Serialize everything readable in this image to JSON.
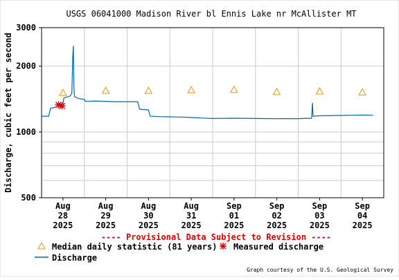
{
  "chart_data": {
    "type": "line",
    "title": "USGS 06041000 Madison River bl Ennis Lake nr McAllister MT",
    "ylabel": "Discharge, cubic feet per second",
    "xlabel": "",
    "y_scale": "log",
    "ylim": [
      500,
      3000
    ],
    "y_ticks": [
      {
        "value": 500,
        "label": "500"
      },
      {
        "value": 1000,
        "label": "1000"
      },
      {
        "value": 2000,
        "label": "2000"
      },
      {
        "value": 3000,
        "label": "3000"
      }
    ],
    "y_minor_ticks": [
      600,
      700,
      800,
      900
    ],
    "xlim": [
      "2025-08-28T00:00",
      "2025-09-05T00:00"
    ],
    "x_ticks": [
      {
        "date": "2025-08-28T12:00",
        "month": "Aug",
        "day": "28",
        "year": "2025"
      },
      {
        "date": "2025-08-29T12:00",
        "month": "Aug",
        "day": "29",
        "year": "2025"
      },
      {
        "date": "2025-08-30T12:00",
        "month": "Aug",
        "day": "30",
        "year": "2025"
      },
      {
        "date": "2025-08-31T12:00",
        "month": "Aug",
        "day": "31",
        "year": "2025"
      },
      {
        "date": "2025-09-01T12:00",
        "month": "Sep",
        "day": "01",
        "year": "2025"
      },
      {
        "date": "2025-09-02T12:00",
        "month": "Sep",
        "day": "02",
        "year": "2025"
      },
      {
        "date": "2025-09-03T12:00",
        "month": "Sep",
        "day": "03",
        "year": "2025"
      },
      {
        "date": "2025-09-04T12:00",
        "month": "Sep",
        "day": "04",
        "year": "2025"
      }
    ],
    "grid": true,
    "series": [
      {
        "name": "Discharge",
        "kind": "line",
        "color": "#0066aa",
        "points": [
          [
            "2025-08-28T00:00",
            1180
          ],
          [
            "2025-08-28T04:00",
            1180
          ],
          [
            "2025-08-28T05:00",
            1280
          ],
          [
            "2025-08-28T08:00",
            1300
          ],
          [
            "2025-08-28T12:00",
            1350
          ],
          [
            "2025-08-28T12:30",
            1430
          ],
          [
            "2025-08-28T16:00",
            1460
          ],
          [
            "2025-08-28T17:00",
            1500
          ],
          [
            "2025-08-28T17:30",
            2200
          ],
          [
            "2025-08-28T17:50",
            2480
          ],
          [
            "2025-08-28T18:10",
            1620
          ],
          [
            "2025-08-28T18:30",
            1450
          ],
          [
            "2025-08-28T21:00",
            1420
          ],
          [
            "2025-08-29T00:00",
            1410
          ],
          [
            "2025-08-29T00:30",
            1380
          ],
          [
            "2025-08-29T06:00",
            1385
          ],
          [
            "2025-08-29T12:00",
            1380
          ],
          [
            "2025-08-29T18:00",
            1375
          ],
          [
            "2025-08-30T00:00",
            1375
          ],
          [
            "2025-08-30T06:00",
            1375
          ],
          [
            "2025-08-30T07:00",
            1270
          ],
          [
            "2025-08-30T10:00",
            1265
          ],
          [
            "2025-08-30T12:00",
            1260
          ],
          [
            "2025-08-30T13:00",
            1180
          ],
          [
            "2025-08-30T18:00",
            1175
          ],
          [
            "2025-08-31T00:00",
            1172
          ],
          [
            "2025-08-31T06:00",
            1170
          ],
          [
            "2025-08-31T12:00",
            1165
          ],
          [
            "2025-08-31T18:00",
            1158
          ],
          [
            "2025-09-01T00:00",
            1152
          ],
          [
            "2025-09-01T12:00",
            1155
          ],
          [
            "2025-09-02T00:00",
            1152
          ],
          [
            "2025-09-02T12:00",
            1150
          ],
          [
            "2025-09-03T00:00",
            1150
          ],
          [
            "2025-09-03T07:30",
            1155
          ],
          [
            "2025-09-03T08:00",
            1360
          ],
          [
            "2025-09-03T08:20",
            1180
          ],
          [
            "2025-09-03T12:00",
            1185
          ],
          [
            "2025-09-04T00:00",
            1190
          ],
          [
            "2025-09-04T12:00",
            1195
          ],
          [
            "2025-09-04T18:00",
            1192
          ]
        ]
      },
      {
        "name": "Median daily statistic (81 years)",
        "kind": "marker-triangle",
        "color": "#e69500",
        "points": [
          [
            "2025-08-28T12:00",
            1510
          ],
          [
            "2025-08-29T12:00",
            1545
          ],
          [
            "2025-08-30T12:00",
            1545
          ],
          [
            "2025-08-31T12:00",
            1555
          ],
          [
            "2025-09-01T12:00",
            1560
          ],
          [
            "2025-09-02T12:00",
            1525
          ],
          [
            "2025-09-03T12:00",
            1535
          ],
          [
            "2025-09-04T12:00",
            1520
          ]
        ]
      },
      {
        "name": "Measured discharge",
        "kind": "marker-star",
        "color": "#dd0000",
        "points": [
          [
            "2025-08-28T09:30",
            1330
          ],
          [
            "2025-08-28T11:30",
            1315
          ]
        ]
      }
    ],
    "provisional_note": "---- Provisional Data Subject to Revision ----",
    "legend": {
      "placement": "bottom-left",
      "items": [
        {
          "label": "Median daily statistic (81 years)",
          "symbol": "triangle",
          "color": "#e69500"
        },
        {
          "label": "Measured discharge",
          "symbol": "star",
          "color": "#dd0000"
        },
        {
          "label": "Discharge",
          "symbol": "line",
          "color": "#0066aa"
        }
      ]
    },
    "credit": "Graph courtesy of the U.S. Geological Survey"
  }
}
